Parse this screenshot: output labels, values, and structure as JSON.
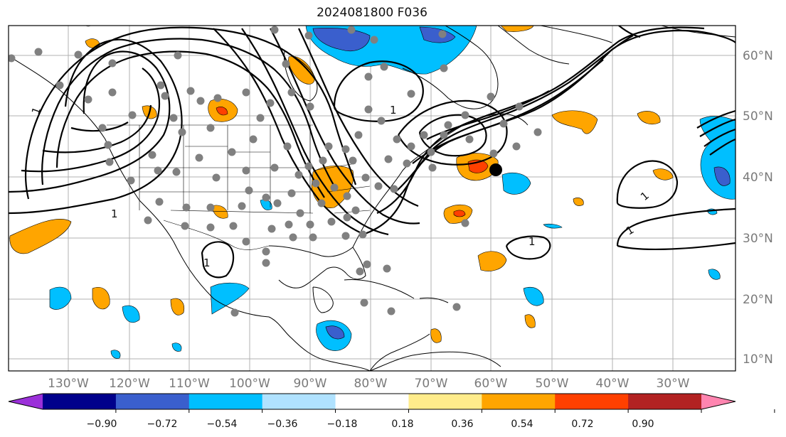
{
  "title": "2024081800 F036",
  "map": {
    "lat_labels": [
      "60°N",
      "50°N",
      "40°N",
      "30°N",
      "20°N",
      "10°N"
    ],
    "lon_labels": [
      "130°W",
      "120°W",
      "110°W",
      "100°W",
      "90°W",
      "80°W",
      "70°W",
      "60°W",
      "50°W",
      "40°W",
      "30°W"
    ],
    "contour_labels": [
      "1",
      "1",
      "1",
      "1",
      "1",
      "1",
      "1"
    ],
    "ocean_color": "#ffffff",
    "grid_color": "#b0b0b0",
    "marker_color": "#808080",
    "highlight_marker_color": "#000000"
  },
  "colorbar": {
    "ticks": [
      "−0.90",
      "−0.72",
      "−0.54",
      "−0.36",
      "−0.18",
      "0.18",
      "0.36",
      "0.54",
      "0.72",
      "0.90"
    ],
    "colors": [
      "#9b30d9",
      "#00008b",
      "#3a5fcd",
      "#00bfff",
      "#b0e2ff",
      "#ffffff",
      "#ffec8b",
      "#ffa500",
      "#ff4000",
      "#b22222",
      "#ff85b0"
    ]
  }
}
